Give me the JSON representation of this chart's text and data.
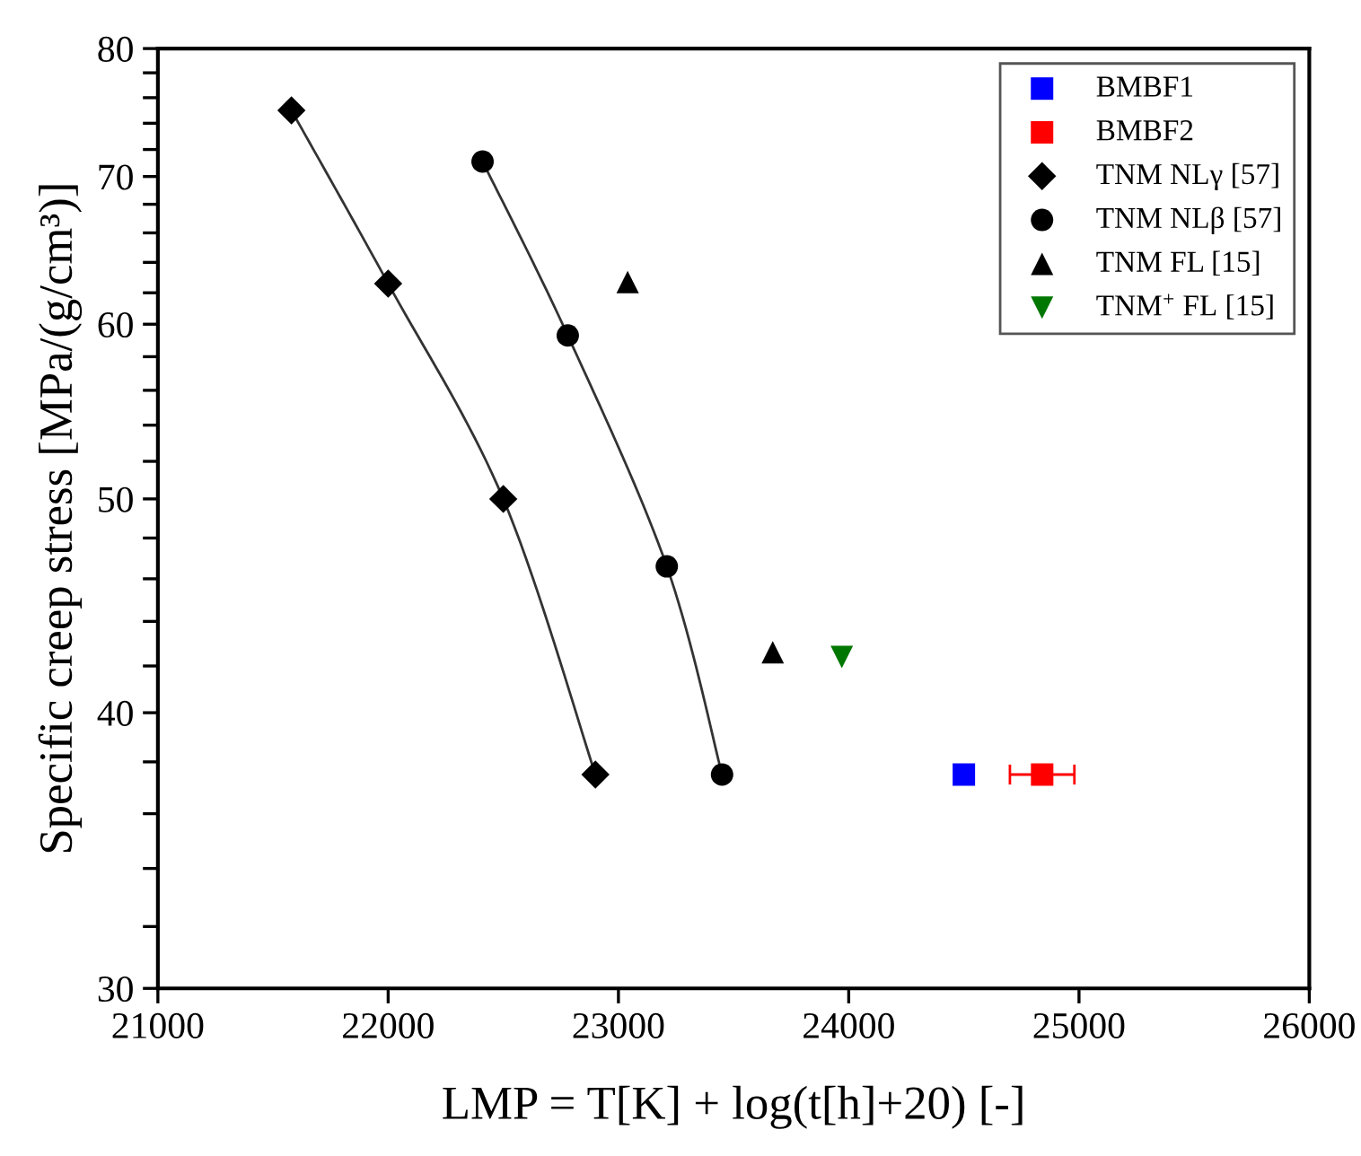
{
  "chart_data": {
    "type": "scatter",
    "xlabel": "LMP = T[K] + log(t[h]+20) [-]",
    "ylabel": "Specific creep stress [MPa/(g/cm³)]",
    "log": "y",
    "xlim": [
      21000,
      26000
    ],
    "xticks": [
      21000,
      22000,
      23000,
      24000,
      25000,
      26000
    ],
    "ylim": [
      30,
      80
    ],
    "yticks": [
      30,
      {
        "value": 32,
        "label": null
      },
      {
        "value": 34,
        "label": null
      },
      {
        "value": 36,
        "label": null
      },
      {
        "value": 38,
        "label": null
      },
      40,
      {
        "value": 42,
        "label": null
      },
      {
        "value": 44,
        "label": null
      },
      {
        "value": 46,
        "label": null
      },
      {
        "value": 48,
        "label": null
      },
      50,
      {
        "value": 52,
        "label": null
      },
      {
        "value": 54,
        "label": null
      },
      {
        "value": 56,
        "label": null
      },
      {
        "value": 58,
        "label": null
      },
      60,
      {
        "value": 62,
        "label": null
      },
      {
        "value": 64,
        "label": null
      },
      {
        "value": 66,
        "label": null
      },
      {
        "value": 68,
        "label": null
      },
      70,
      {
        "value": 72,
        "label": null
      },
      {
        "value": 74,
        "label": null
      },
      {
        "value": 76,
        "label": null
      },
      {
        "value": 78,
        "label": null
      },
      80
    ],
    "grid": false,
    "legend": "top right",
    "series": [
      {
        "name": "BMBF1",
        "color": "#0000ff",
        "marker": "square",
        "x": [
          24500
        ],
        "values": [
          37.5
        ]
      },
      {
        "name": "BMBF2",
        "color": "#ff0000",
        "marker": "square",
        "x": [
          24840
        ],
        "values": [
          37.5
        ],
        "xerrors": [
          140
        ]
      },
      {
        "name": "TNM NLγ [57]",
        "color": "#000000",
        "marker": "diamond",
        "x": [
          21580,
          22000,
          22500,
          22900
        ],
        "values": [
          75.0,
          62.6,
          50.0,
          37.5
        ]
      },
      {
        "name": "TNM NLβ [57]",
        "color": "#000000",
        "marker": "circle",
        "x": [
          22410,
          22780,
          23210,
          23450
        ],
        "values": [
          71.1,
          59.3,
          46.6,
          37.5
        ]
      },
      {
        "name": "TNM FL [15]",
        "color": "#000000",
        "marker": "triangle",
        "x": [
          23040,
          23670
        ],
        "values": [
          62.7,
          42.6
        ]
      },
      {
        "name": "TNM$^{+}$ FL [15]",
        "color": "#007700",
        "marker": "triangle_down",
        "x": [
          23970
        ],
        "values": [
          42.4
        ]
      },
      {
        "type": "line",
        "color": "#333333",
        "x": [
          21580,
          22000,
          22500,
          22900
        ],
        "values": [
          75.0,
          62.6,
          50.0,
          37.5
        ]
      },
      {
        "type": "line",
        "color": "#333333",
        "x": [
          22410,
          22780,
          23210,
          23450
        ],
        "values": [
          71.1,
          59.3,
          46.6,
          37.5
        ]
      }
    ]
  }
}
